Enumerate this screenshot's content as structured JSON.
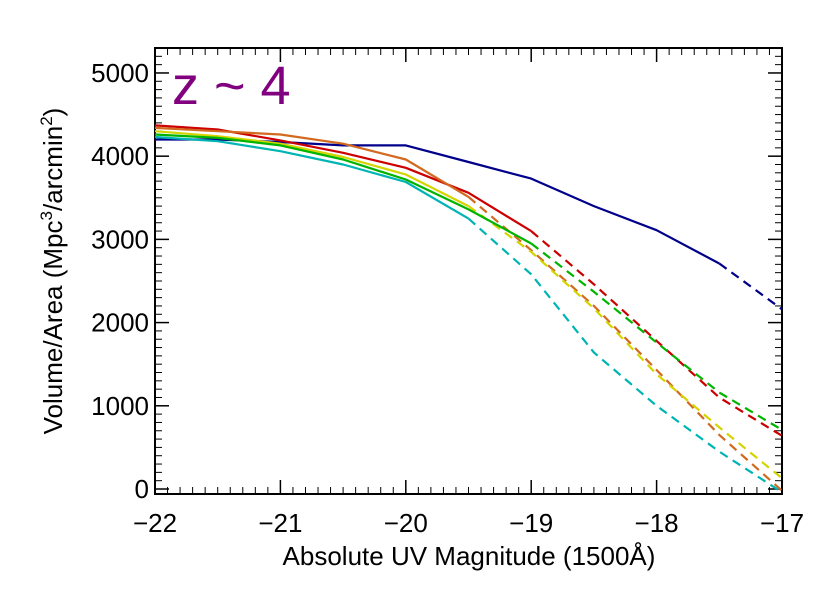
{
  "chart_data": {
    "type": "line",
    "title": "",
    "xlabel": "Absolute UV Magnitude (1500Å)",
    "ylabel_parts": {
      "pre": "Volume/Area (Mpc",
      "sup1": "3",
      "mid": "/arcmin",
      "sup2": "2",
      "post": ")"
    },
    "xlim": [
      -22,
      -17
    ],
    "ylim": [
      -60,
      5300
    ],
    "x_ticks": [
      -22,
      -21,
      -20,
      -19,
      -18,
      -17
    ],
    "x_tick_labels": [
      "−22",
      "−21",
      "−20",
      "−19",
      "−18",
      "−17"
    ],
    "y_ticks": [
      0,
      1000,
      2000,
      3000,
      4000,
      5000
    ],
    "y_tick_labels": [
      "0",
      "1000",
      "2000",
      "3000",
      "4000",
      "5000"
    ],
    "grid": false,
    "annotation": {
      "text": "z ~ 4",
      "color": "#800080"
    },
    "series": [
      {
        "color": "#00008b",
        "solid": [
          [
            -22,
            4200
          ],
          [
            -21.5,
            4200
          ],
          [
            -21,
            4170
          ],
          [
            -20.5,
            4130
          ],
          [
            -20,
            4130
          ],
          [
            -19.5,
            3930
          ],
          [
            -19,
            3730
          ],
          [
            -18.5,
            3400
          ],
          [
            -18,
            3110
          ],
          [
            -17.5,
            2710
          ]
        ],
        "dashed": [
          [
            -17.5,
            2710
          ],
          [
            -17,
            2160
          ]
        ]
      },
      {
        "color": "#cc0000",
        "solid": [
          [
            -22,
            4370
          ],
          [
            -21.5,
            4320
          ],
          [
            -21,
            4190
          ],
          [
            -20.5,
            4040
          ],
          [
            -20,
            3860
          ],
          [
            -19.5,
            3560
          ],
          [
            -19,
            3100
          ]
        ],
        "dashed": [
          [
            -19,
            3100
          ],
          [
            -18.5,
            2460
          ],
          [
            -18,
            1780
          ],
          [
            -17.5,
            1100
          ],
          [
            -17,
            640
          ]
        ]
      },
      {
        "color": "#d2691e",
        "solid": [
          [
            -22,
            4340
          ],
          [
            -21.5,
            4300
          ],
          [
            -21,
            4260
          ],
          [
            -20.5,
            4150
          ],
          [
            -20,
            3960
          ],
          [
            -19.5,
            3510
          ]
        ],
        "dashed": [
          [
            -19.5,
            3510
          ],
          [
            -19,
            2870
          ],
          [
            -18.5,
            2200
          ],
          [
            -18,
            1430
          ],
          [
            -17.5,
            650
          ],
          [
            -17,
            -20
          ]
        ]
      },
      {
        "color": "#d4d400",
        "solid": [
          [
            -22,
            4300
          ],
          [
            -21.5,
            4240
          ],
          [
            -21,
            4150
          ],
          [
            -20.5,
            3990
          ],
          [
            -20,
            3780
          ],
          [
            -19.5,
            3400
          ]
        ],
        "dashed": [
          [
            -19.5,
            3400
          ],
          [
            -19,
            2850
          ],
          [
            -18.5,
            2170
          ],
          [
            -18,
            1380
          ],
          [
            -17.5,
            740
          ],
          [
            -17,
            130
          ]
        ]
      },
      {
        "color": "#00b400",
        "solid": [
          [
            -22,
            4260
          ],
          [
            -21.5,
            4220
          ],
          [
            -21,
            4130
          ],
          [
            -20.5,
            3960
          ],
          [
            -20,
            3720
          ],
          [
            -19.5,
            3360
          ],
          [
            -19,
            2950
          ]
        ],
        "dashed": [
          [
            -19,
            2950
          ],
          [
            -18.5,
            2370
          ],
          [
            -18,
            1760
          ],
          [
            -17.5,
            1160
          ],
          [
            -17,
            710
          ]
        ]
      },
      {
        "color": "#00b4b4",
        "solid": [
          [
            -22,
            4230
          ],
          [
            -21.5,
            4180
          ],
          [
            -21,
            4060
          ],
          [
            -20.5,
            3900
          ],
          [
            -20,
            3690
          ],
          [
            -19.5,
            3250
          ]
        ],
        "dashed": [
          [
            -19.5,
            3250
          ],
          [
            -19,
            2580
          ],
          [
            -18.5,
            1640
          ],
          [
            -18,
            1000
          ],
          [
            -17.5,
            450
          ],
          [
            -17,
            -40
          ]
        ]
      }
    ]
  }
}
